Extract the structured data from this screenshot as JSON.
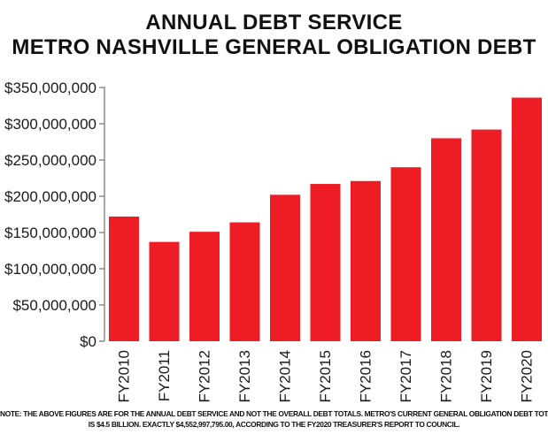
{
  "header": {
    "title_line1": "ANNUAL DEBT SERVICE",
    "title_line2": "METRO NASHVILLE GENERAL OBLIGATION DEBT"
  },
  "footnote": {
    "line1": "NOTE: THE ABOVE FIGURES ARE FOR THE ANNUAL DEBT SERVICE AND NOT THE OVERALL DEBT TOTALS.  METRO'S CURRENT GENERAL OBLIGATION DEBT TOTAL",
    "line2": "IS $4.5 BILLION.  EXACTLY $4,552,997,795.00, ACCORDING TO THE FY2020 TREASURER'S REPORT TO COUNCIL."
  },
  "colors": {
    "bar": "#ee1c25",
    "axis": "#8a8a8a",
    "text": "#1a1a1a"
  },
  "chart_data": {
    "type": "bar",
    "title": "ANNUAL DEBT SERVICE METRO NASHVILLE GENERAL OBLIGATION DEBT",
    "xlabel": "",
    "ylabel": "",
    "categories": [
      "FY2010",
      "FY2011",
      "FY2012",
      "FY2013",
      "FY2014",
      "FY2015",
      "FY2016",
      "FY2017",
      "FY2018",
      "FY2019",
      "FY2020"
    ],
    "values": [
      172000000,
      137000000,
      151000000,
      164000000,
      202000000,
      217000000,
      221000000,
      240000000,
      280000000,
      292000000,
      336000000
    ],
    "ylim": [
      0,
      350000000
    ],
    "yticks": [
      0,
      50000000,
      100000000,
      150000000,
      200000000,
      250000000,
      300000000,
      350000000
    ],
    "ytick_labels": [
      "$0",
      "$50,000,000",
      "$100,000,000",
      "$150,000,000",
      "$200,000,000",
      "$250,000,000",
      "$300,000,000",
      "$350,000,000"
    ],
    "grid": false,
    "legend": "none"
  }
}
